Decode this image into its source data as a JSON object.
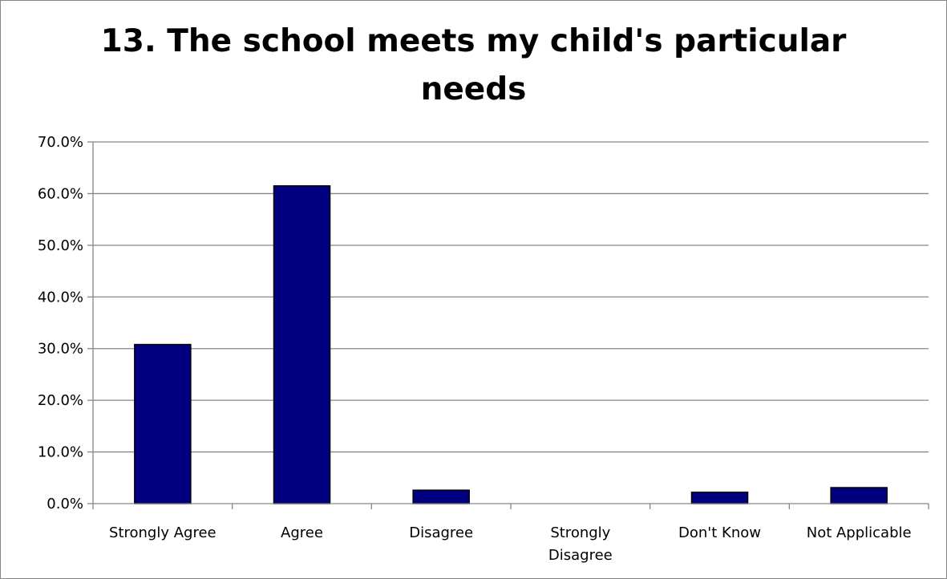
{
  "chart_data": {
    "type": "bar",
    "title": "13. The school meets my child's particular needs",
    "title_lines": [
      "13. The school meets my child's particular",
      "needs"
    ],
    "categories": [
      "Strongly Agree",
      "Agree",
      "Disagree",
      "Strongly Disagree",
      "Don't Know",
      "Not Applicable"
    ],
    "category_label_lines": [
      [
        "Strongly Agree"
      ],
      [
        "Agree"
      ],
      [
        "Disagree"
      ],
      [
        "Strongly",
        "Disagree"
      ],
      [
        "Don't Know"
      ],
      [
        "Not Applicable"
      ]
    ],
    "values": [
      30.8,
      61.5,
      2.6,
      0.0,
      2.2,
      3.1
    ],
    "ylim": [
      0,
      70
    ],
    "yticks": [
      0,
      10,
      20,
      30,
      40,
      50,
      60,
      70
    ],
    "ytick_labels": [
      "0.0%",
      "10.0%",
      "20.0%",
      "30.0%",
      "40.0%",
      "50.0%",
      "60.0%",
      "70.0%"
    ],
    "xlabel": "",
    "ylabel": "",
    "grid": true,
    "legend": "none",
    "bar_color": "#000080",
    "bar_outline": "#000000",
    "grid_color": "#868686"
  }
}
